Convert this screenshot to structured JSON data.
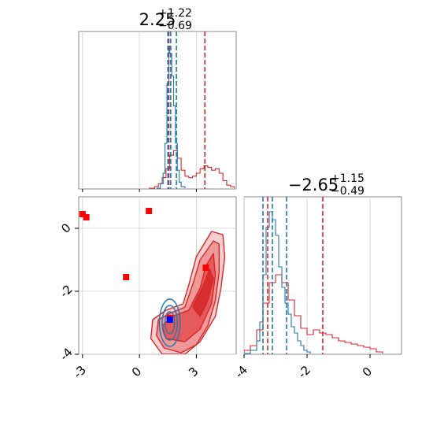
{
  "chart_data": {
    "type": "corner",
    "params": [
      {
        "axis_ticks": [
          "-3",
          "0",
          "3"
        ],
        "tick_values": [
          -3,
          0,
          3
        ],
        "range": [
          -3.2,
          5.1
        ]
      },
      {
        "axis_ticks": [
          "-4",
          "-2",
          "0"
        ],
        "tick_values": [
          -4,
          -2,
          0
        ],
        "range": [
          -4.0,
          1.0
        ]
      }
    ],
    "title_a": {
      "median": "2.25",
      "plus": "+1.22",
      "minus": "−0.69"
    },
    "title_b": {
      "median": "−2.65",
      "plus": "+1.15",
      "minus": "−0.49"
    },
    "marginal_a": {
      "lines_red": [
        1.55,
        3.45
      ],
      "lines_blue": [
        1.5,
        1.65,
        1.95
      ],
      "blue_x": [
        0.9,
        1.1,
        1.25,
        1.35,
        1.45,
        1.55,
        1.6,
        1.7,
        1.8,
        1.9,
        2.0,
        2.1,
        2.2,
        2.4
      ],
      "blue_y": [
        0,
        0.03,
        0.1,
        0.3,
        0.7,
        0.95,
        0.9,
        0.75,
        0.55,
        0.3,
        0.12,
        0.04,
        0.01,
        0
      ],
      "red_x": [
        0.5,
        0.8,
        1.0,
        1.2,
        1.4,
        1.6,
        1.8,
        2.0,
        2.2,
        2.4,
        2.6,
        2.8,
        3.0,
        3.2,
        3.4,
        3.6,
        3.8,
        4.0,
        4.2,
        4.4,
        4.6,
        4.8,
        5.0
      ],
      "red_y": [
        0,
        0.01,
        0.03,
        0.07,
        0.13,
        0.22,
        0.25,
        0.2,
        0.12,
        0.08,
        0.07,
        0.08,
        0.1,
        0.13,
        0.15,
        0.14,
        0.12,
        0.13,
        0.1,
        0.05,
        0.02,
        0.01,
        0
      ]
    },
    "marginal_b": {
      "lines_red": [
        -3.25,
        -1.5
      ],
      "lines_blue": [
        -3.4,
        -3.1,
        -2.65
      ],
      "blue_x": [
        -4.0,
        -3.8,
        -3.6,
        -3.5,
        -3.4,
        -3.3,
        -3.2,
        -3.1,
        -3.0,
        -2.9,
        -2.8,
        -2.7,
        -2.6,
        -2.5,
        -2.4,
        -2.3,
        -2.2,
        -2.1,
        -2.0,
        -1.9
      ],
      "blue_y": [
        0,
        0.02,
        0.08,
        0.2,
        0.5,
        0.8,
        0.9,
        0.85,
        0.75,
        0.55,
        0.42,
        0.32,
        0.25,
        0.17,
        0.13,
        0.08,
        0.05,
        0.02,
        0.01,
        0
      ],
      "red_x": [
        -4.0,
        -3.8,
        -3.6,
        -3.4,
        -3.2,
        -3.0,
        -2.8,
        -2.6,
        -2.4,
        -2.2,
        -2.0,
        -1.8,
        -1.6,
        -1.4,
        -1.2,
        -1.0,
        -0.8,
        -0.6,
        -0.4,
        -0.2,
        0.0,
        0.2,
        0.4
      ],
      "red_y": [
        0.02,
        0.05,
        0.15,
        0.32,
        0.45,
        0.5,
        0.45,
        0.34,
        0.24,
        0.16,
        0.12,
        0.15,
        0.13,
        0.12,
        0.1,
        0.08,
        0.07,
        0.06,
        0.05,
        0.04,
        0.03,
        0.01,
        0
      ]
    },
    "joint": {
      "red_contours": [
        [
          [
            1.2,
            -4.0
          ],
          [
            0.6,
            -3.5
          ],
          [
            0.7,
            -2.9
          ],
          [
            1.4,
            -2.6
          ],
          [
            2.3,
            -2.4
          ],
          [
            2.6,
            -1.8
          ],
          [
            3.0,
            -0.9
          ],
          [
            3.8,
            -0.1
          ],
          [
            4.4,
            -0.2
          ],
          [
            4.5,
            -0.9
          ],
          [
            4.3,
            -1.9
          ],
          [
            4.0,
            -2.8
          ],
          [
            3.2,
            -3.6
          ],
          [
            2.4,
            -4.0
          ]
        ],
        [
          [
            1.3,
            -3.8
          ],
          [
            0.9,
            -3.4
          ],
          [
            1.0,
            -2.9
          ],
          [
            1.6,
            -2.7
          ],
          [
            2.4,
            -2.5
          ],
          [
            2.8,
            -1.8
          ],
          [
            3.2,
            -1.0
          ],
          [
            3.9,
            -0.4
          ],
          [
            4.2,
            -0.5
          ],
          [
            4.2,
            -1.4
          ],
          [
            4.0,
            -2.3
          ],
          [
            3.6,
            -3.1
          ],
          [
            3.0,
            -3.7
          ],
          [
            2.2,
            -3.95
          ]
        ],
        [
          [
            1.4,
            -3.5
          ],
          [
            1.2,
            -3.1
          ],
          [
            1.7,
            -2.8
          ],
          [
            2.6,
            -2.6
          ],
          [
            3.2,
            -1.9
          ],
          [
            3.5,
            -1.2
          ],
          [
            3.9,
            -0.8
          ],
          [
            4.0,
            -1.5
          ],
          [
            3.8,
            -2.4
          ],
          [
            3.2,
            -3.2
          ],
          [
            2.4,
            -3.6
          ]
        ],
        [
          [
            2.8,
            -2.5
          ],
          [
            3.3,
            -1.9
          ],
          [
            3.7,
            -1.3
          ],
          [
            3.9,
            -1.6
          ],
          [
            3.6,
            -2.3
          ],
          [
            3.2,
            -2.8
          ]
        ]
      ],
      "blue_ellipses": [
        {
          "cx": 1.6,
          "cy": -3.0,
          "rx": 0.55,
          "ry": 0.75
        },
        {
          "cx": 1.6,
          "cy": -3.0,
          "rx": 0.4,
          "ry": 0.55
        },
        {
          "cx": 1.6,
          "cy": -3.0,
          "rx": 0.25,
          "ry": 0.35
        }
      ],
      "red_markers": [
        [
          -3.0,
          0.45
        ],
        [
          -2.8,
          0.35
        ],
        [
          0.5,
          0.55
        ],
        [
          -0.7,
          -1.55
        ],
        [
          3.5,
          -1.25
        ],
        [
          1.6,
          -2.85
        ]
      ],
      "blue_marker": [
        1.6,
        -2.9
      ]
    }
  }
}
